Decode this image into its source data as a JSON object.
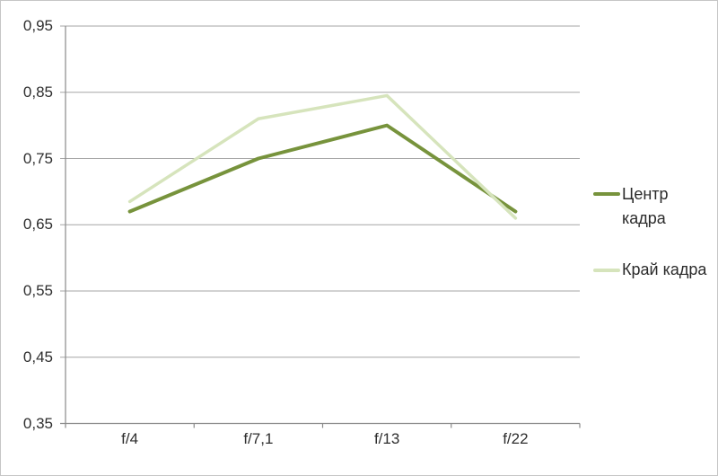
{
  "chart_data": {
    "type": "line",
    "title": "",
    "categories": [
      "f/4",
      "f/7,1",
      "f/13",
      "f/22"
    ],
    "series": [
      {
        "name": "Центр кадра",
        "values": [
          0.67,
          0.75,
          0.8,
          0.67
        ],
        "color": "#77933C",
        "stroke_width": 4
      },
      {
        "name": "Край кадра",
        "values": [
          0.685,
          0.81,
          0.845,
          0.66
        ],
        "color": "#D6E4BC",
        "stroke_width": 3.5
      }
    ],
    "ylim": [
      0.35,
      0.95
    ],
    "ytick_step": 0.1,
    "yticks_display": [
      "0,95",
      "0,85",
      "0,75",
      "0,65",
      "0,55",
      "0,45",
      "0,35"
    ],
    "xlabel": "",
    "ylabel": "",
    "grid": true,
    "legend_position": "right",
    "decimal_separator": ",",
    "gridline_color": "#a6a6a6",
    "axis_color": "#8a8a8a",
    "text_color": "#2e2e2e"
  }
}
